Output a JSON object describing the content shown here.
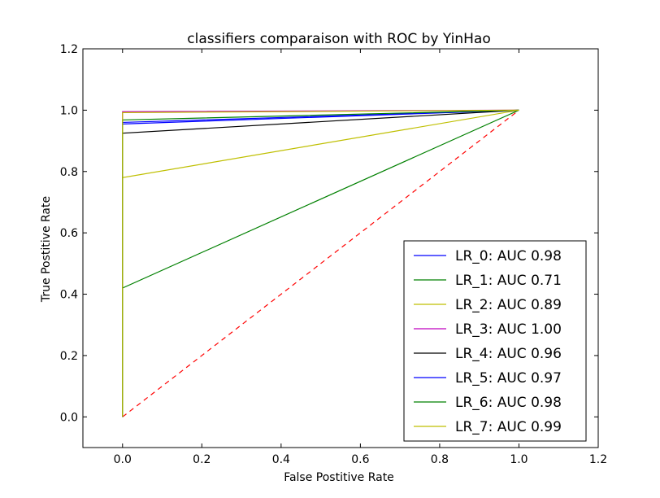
{
  "chart_data": {
    "type": "line",
    "title": "classifiers comparaison with ROC by YinHao",
    "xlabel": "False Postitive Rate",
    "ylabel": "True Postitive Rate",
    "xlim": [
      -0.1,
      1.2
    ],
    "ylim": [
      -0.1,
      1.2
    ],
    "xticks": [
      0.0,
      0.2,
      0.4,
      0.6,
      0.8,
      1.0,
      1.2
    ],
    "yticks": [
      0.0,
      0.2,
      0.4,
      0.6,
      0.8,
      1.0,
      1.2
    ],
    "xtick_labels": [
      "0.0",
      "0.2",
      "0.4",
      "0.6",
      "0.8",
      "1.0",
      "1.2"
    ],
    "ytick_labels": [
      "0.0",
      "0.2",
      "0.4",
      "0.6",
      "0.8",
      "1.0",
      "1.2"
    ],
    "grid": false,
    "legend_position": "bottom-right",
    "series": [
      {
        "name": "LR_0: AUC 0.98",
        "color": "#0000ff",
        "x": [
          0.0,
          0.0,
          1.0
        ],
        "y": [
          0.0,
          0.955,
          1.0
        ]
      },
      {
        "name": "LR_1: AUC 0.71",
        "color": "#008000",
        "x": [
          0.0,
          0.0,
          1.0
        ],
        "y": [
          0.0,
          0.42,
          1.0
        ]
      },
      {
        "name": "LR_2: AUC 0.89",
        "color": "#bfbf00",
        "x": [
          0.0,
          0.0,
          1.0
        ],
        "y": [
          0.0,
          0.78,
          1.0
        ]
      },
      {
        "name": "LR_3: AUC 1.00",
        "color": "#bf00bf",
        "x": [
          0.0,
          0.0,
          1.0
        ],
        "y": [
          0.0,
          0.995,
          1.0
        ]
      },
      {
        "name": "LR_4: AUC 0.96",
        "color": "#000000",
        "x": [
          0.0,
          0.0,
          1.0
        ],
        "y": [
          0.0,
          0.925,
          1.0
        ]
      },
      {
        "name": "LR_5: AUC 0.97",
        "color": "#0000ff",
        "x": [
          0.0,
          0.0,
          1.0
        ],
        "y": [
          0.0,
          0.96,
          1.0
        ]
      },
      {
        "name": "LR_6: AUC 0.98",
        "color": "#008000",
        "x": [
          0.0,
          0.0,
          1.0
        ],
        "y": [
          0.0,
          0.968,
          1.0
        ]
      },
      {
        "name": "LR_7: AUC 0.99",
        "color": "#bfbf00",
        "x": [
          0.0,
          0.0,
          1.0
        ],
        "y": [
          0.0,
          0.992,
          1.0
        ]
      }
    ],
    "reference_line": {
      "color": "#ff0000",
      "dash": "dashed",
      "x": [
        0.0,
        1.0
      ],
      "y": [
        0.0,
        1.0
      ]
    }
  }
}
